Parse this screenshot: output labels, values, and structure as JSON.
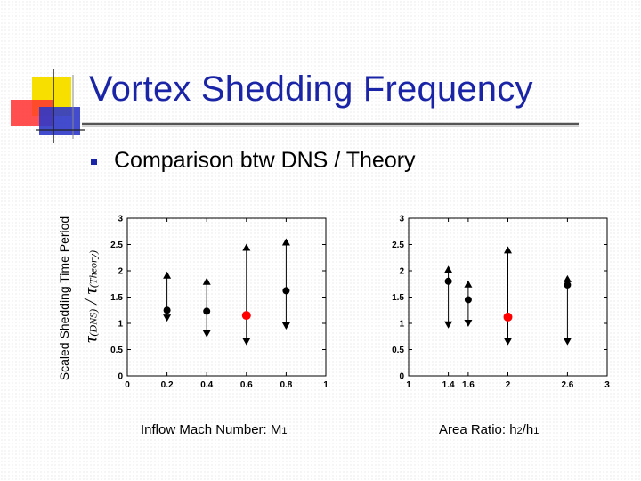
{
  "slide": {
    "title": "Vortex Shedding Frequency",
    "bullet": "Comparison btw DNS / Theory"
  },
  "axes": {
    "y_outer_label": "Scaled Shedding Time Period",
    "y_inner_tau1": "τ",
    "y_inner_sub1": "(DNS)",
    "y_inner_slash": " / ",
    "y_inner_tau2": "τ",
    "y_inner_sub2": "(Theory)",
    "left_xlabel_main": "Inflow Mach Number: M",
    "left_xlabel_sub": "1",
    "right_xlabel_p1": "Area Ratio: h",
    "right_xlabel_s1": "2",
    "right_xlabel_p2": "/h",
    "right_xlabel_s2": "1"
  },
  "colors": {
    "title": "#1a24a6",
    "marker": "#000000",
    "highlight": "#ff0000",
    "deco_yellow": "#f7e000",
    "deco_red": "#ff3030",
    "deco_blue": "#2f39c8"
  },
  "chart_data": [
    {
      "type": "scatter",
      "xlim": [
        0,
        1
      ],
      "ylim": [
        0,
        3
      ],
      "xticks": [
        0,
        0.2,
        0.4,
        0.6,
        0.8,
        1
      ],
      "xtick_labels": [
        "0",
        "0.2",
        "0.4",
        "0.6",
        "0.8",
        "1"
      ],
      "yticks": [
        0,
        0.5,
        1,
        1.5,
        2,
        2.5,
        3
      ],
      "ytick_labels": [
        "0",
        "0.5",
        "1",
        "1.5",
        "2",
        "2.5",
        "3"
      ],
      "points": [
        {
          "x": 0.2,
          "dns": 1.25,
          "low": 1.1,
          "high": 1.92,
          "highlight": false
        },
        {
          "x": 0.4,
          "dns": 1.23,
          "low": 0.8,
          "high": 1.8,
          "highlight": false
        },
        {
          "x": 0.6,
          "dns": 1.15,
          "low": 0.65,
          "high": 2.45,
          "highlight": true
        },
        {
          "x": 0.8,
          "dns": 1.62,
          "low": 0.95,
          "high": 2.55,
          "highlight": false
        }
      ]
    },
    {
      "type": "scatter",
      "xlim": [
        1,
        3
      ],
      "ylim": [
        0,
        3
      ],
      "xticks": [
        1,
        1.4,
        1.6,
        2,
        2.6,
        3
      ],
      "xtick_labels": [
        "1",
        "1.4",
        "1.6",
        "2",
        "2.6",
        "3"
      ],
      "yticks": [
        0,
        0.5,
        1,
        1.5,
        2,
        2.5,
        3
      ],
      "ytick_labels": [
        "0",
        "0.5",
        "1",
        "1.5",
        "2",
        "2.5",
        "3"
      ],
      "points": [
        {
          "x": 1.4,
          "dns": 1.8,
          "low": 0.97,
          "high": 2.03,
          "highlight": false
        },
        {
          "x": 1.6,
          "dns": 1.45,
          "low": 1.0,
          "high": 1.75,
          "highlight": false
        },
        {
          "x": 2.0,
          "dns": 1.12,
          "low": 0.65,
          "high": 2.4,
          "highlight": true
        },
        {
          "x": 2.6,
          "dns": 1.73,
          "low": 0.65,
          "high": 1.85,
          "highlight": false
        }
      ]
    }
  ]
}
